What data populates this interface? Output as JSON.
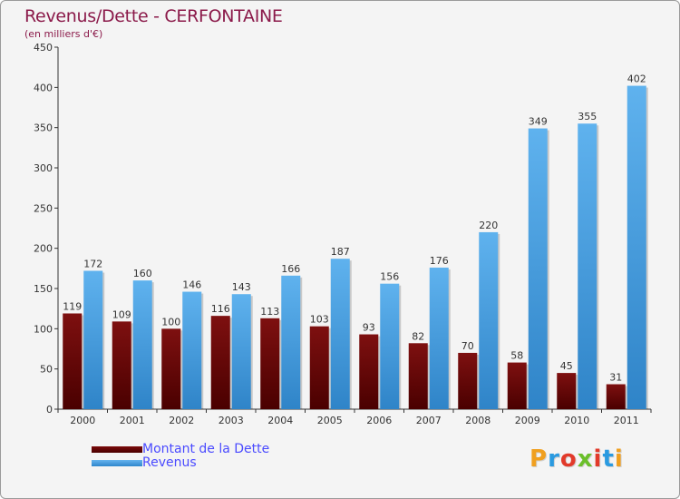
{
  "header": {
    "title": "Revenus/Dette - CERFONTAINE",
    "subtitle": "(en milliers d'€)"
  },
  "legend": {
    "dette_label": "Montant de la Dette",
    "revenus_label": "Revenus"
  },
  "brand": {
    "text": "Proxiti",
    "letters": [
      "P",
      "r",
      "o",
      "x",
      "i",
      "t",
      "i"
    ],
    "colors": [
      "#f0a020",
      "#2a9ae0",
      "#e23a2a",
      "#6bbf2a",
      "#e23a2a",
      "#2a9ae0",
      "#f0a020"
    ]
  },
  "chart_data": {
    "type": "bar",
    "title": "Revenus/Dette - CERFONTAINE",
    "subtitle": "(en milliers d'€)",
    "xlabel": "",
    "ylabel": "",
    "ylim": [
      0,
      450
    ],
    "yticks": [
      0,
      50,
      100,
      150,
      200,
      250,
      300,
      350,
      400,
      450
    ],
    "grid": false,
    "legend_position": "bottom-left",
    "categories": [
      "2000",
      "2001",
      "2002",
      "2003",
      "2004",
      "2005",
      "2006",
      "2007",
      "2008",
      "2009",
      "2010",
      "2011"
    ],
    "series": [
      {
        "name": "Montant de la Dette",
        "color": "#6e0a0a",
        "values": [
          119,
          109,
          100,
          116,
          113,
          103,
          93,
          82,
          70,
          58,
          45,
          31
        ]
      },
      {
        "name": "Revenus",
        "color": "#4ea8e8",
        "values": [
          172,
          160,
          146,
          143,
          166,
          187,
          156,
          176,
          220,
          349,
          355,
          402
        ]
      }
    ]
  }
}
